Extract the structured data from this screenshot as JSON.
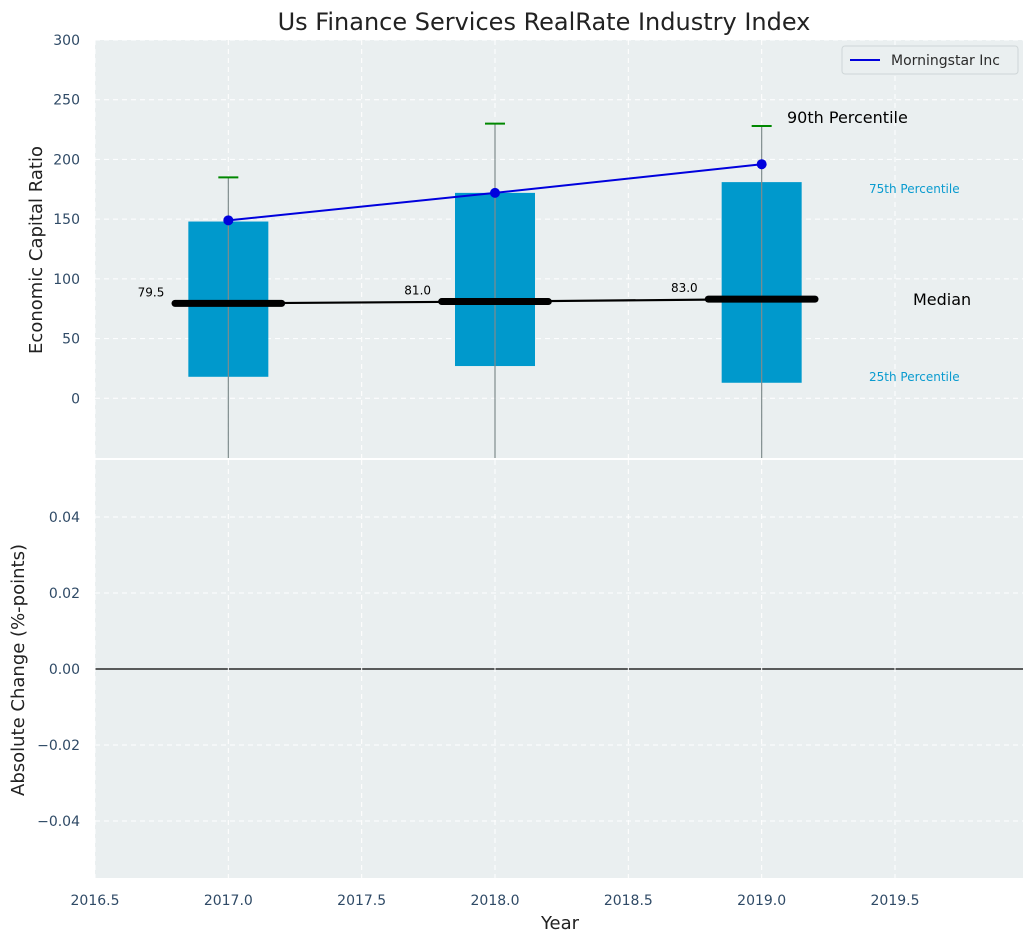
{
  "chart_data": {
    "type": "bar",
    "title": "Us Finance Services RealRate Industry Index",
    "top_panel": {
      "ylabel": "Economic Capital Ratio",
      "ylim": [
        -50,
        300
      ],
      "yticks": [
        0,
        50,
        100,
        150,
        200,
        250,
        300
      ],
      "ytick_labels": [
        "0",
        "50",
        "100",
        "150",
        "200",
        "250",
        "300"
      ],
      "years": [
        2017,
        2018,
        2019
      ],
      "percentile_25": [
        18,
        27,
        13
      ],
      "percentile_75": [
        148,
        172,
        181
      ],
      "percentile_90": [
        185,
        230,
        228
      ],
      "whisker_low": [
        -50,
        -50,
        -50
      ],
      "median": [
        79.5,
        81.0,
        83.0
      ],
      "median_labels": [
        "79.5",
        "81.0",
        "83.0"
      ],
      "series": [
        {
          "name": "Morningstar Inc",
          "x": [
            2017,
            2018,
            2019
          ],
          "values": [
            149,
            172,
            196
          ],
          "color": "#0000dd"
        }
      ],
      "annotations": {
        "p90": "90th Percentile",
        "p75": "75th Percentile",
        "median": "Median",
        "p25": "25th Percentile"
      },
      "legend_placement": "top-right",
      "grid": true
    },
    "bottom_panel": {
      "ylabel": "Absolute Change (%-points)",
      "ylim": [
        -0.055,
        0.055
      ],
      "yticks": [
        -0.04,
        -0.02,
        0.0,
        0.02,
        0.04
      ],
      "ytick_labels": [
        "−0.04",
        "−0.02",
        "0.00",
        "0.02",
        "0.04"
      ],
      "zero_line": true,
      "grid": true
    },
    "xaxis": {
      "xlabel": "Year",
      "xlim": [
        2016.5,
        2019.98
      ],
      "xticks": [
        2016.5,
        2017.0,
        2017.5,
        2018.0,
        2018.5,
        2019.0,
        2019.5
      ],
      "xtick_labels": [
        "2016.5",
        "2017.0",
        "2017.5",
        "2018.0",
        "2018.5",
        "2019.0",
        "2019.5"
      ]
    },
    "colors": {
      "background": "#eaeff0",
      "bar": "#0099cc",
      "median": "#000000",
      "p90_cap": "#008800",
      "whisker": "#7f8c8d",
      "grid": "#ffffff",
      "label_small": "#0a9bcf"
    }
  }
}
